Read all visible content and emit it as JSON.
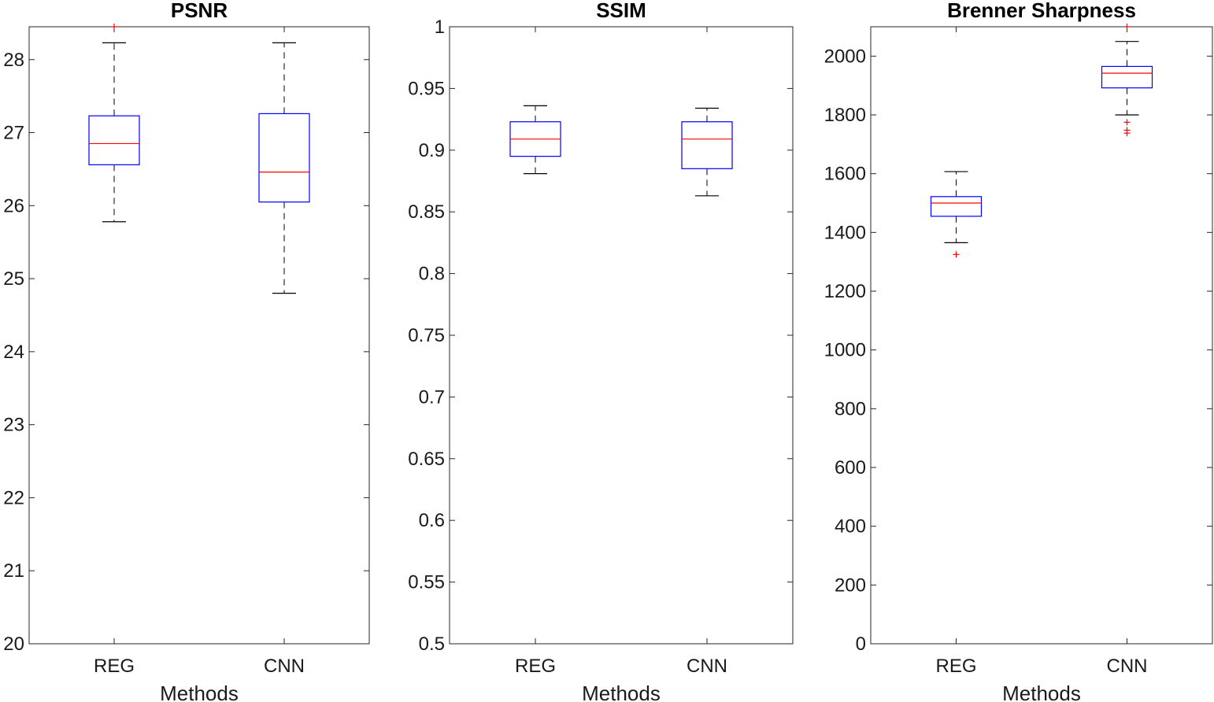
{
  "chart_data": [
    {
      "type": "box",
      "title": "PSNR",
      "xlabel": "Methods",
      "ylabel": "",
      "ylim": [
        20,
        28.45
      ],
      "yticks": [
        20,
        21,
        22,
        23,
        24,
        25,
        26,
        27,
        28
      ],
      "yticklabels": [
        "20",
        "21",
        "22",
        "23",
        "24",
        "25",
        "26",
        "27",
        "28"
      ],
      "categories": [
        "REG",
        "CNN"
      ],
      "boxes": [
        {
          "category": "REG",
          "whisker_low": 25.78,
          "q1": 26.56,
          "median": 26.85,
          "q3": 27.23,
          "whisker_high": 28.23,
          "outliers": [
            28.45
          ]
        },
        {
          "category": "CNN",
          "whisker_low": 24.8,
          "q1": 26.05,
          "median": 26.46,
          "q3": 27.26,
          "whisker_high": 28.23,
          "outliers": []
        }
      ]
    },
    {
      "type": "box",
      "title": "SSIM",
      "xlabel": "Methods",
      "ylabel": "",
      "ylim": [
        0.5,
        1
      ],
      "yticks": [
        0.5,
        0.55,
        0.6,
        0.65,
        0.7,
        0.75,
        0.8,
        0.85,
        0.9,
        0.95,
        1
      ],
      "yticklabels": [
        "0.5",
        "0.55",
        "0.6",
        "0.65",
        "0.7",
        "0.75",
        "0.8",
        "0.85",
        "0.9",
        "0.95",
        "1"
      ],
      "categories": [
        "REG",
        "CNN"
      ],
      "boxes": [
        {
          "category": "REG",
          "whisker_low": 0.881,
          "q1": 0.895,
          "median": 0.909,
          "q3": 0.923,
          "whisker_high": 0.936,
          "outliers": []
        },
        {
          "category": "CNN",
          "whisker_low": 0.863,
          "q1": 0.885,
          "median": 0.909,
          "q3": 0.923,
          "whisker_high": 0.934,
          "outliers": []
        }
      ]
    },
    {
      "type": "box",
      "title": "Brenner Sharpness",
      "xlabel": "Methods",
      "ylabel": "",
      "ylim": [
        0,
        2100
      ],
      "yticks": [
        0,
        200,
        400,
        600,
        800,
        1000,
        1200,
        1400,
        1600,
        1800,
        2000
      ],
      "yticklabels": [
        "0",
        "200",
        "400",
        "600",
        "800",
        "1000",
        "1200",
        "1400",
        "1600",
        "1800",
        "2000"
      ],
      "categories": [
        "REG",
        "CNN"
      ],
      "boxes": [
        {
          "category": "REG",
          "whisker_low": 1365,
          "q1": 1455,
          "median": 1500,
          "q3": 1522,
          "whisker_high": 1607,
          "outliers": [
            1325
          ]
        },
        {
          "category": "CNN",
          "whisker_low": 1800,
          "q1": 1892,
          "median": 1942,
          "q3": 1965,
          "whisker_high": 2050,
          "outliers": [
            1775,
            1748,
            1738,
            2100
          ]
        }
      ]
    }
  ],
  "colors": {
    "box": "#0000ff",
    "median": "#ff0000",
    "whisker": "#000000",
    "outlier": "#ff0000",
    "axes": "#262626"
  }
}
